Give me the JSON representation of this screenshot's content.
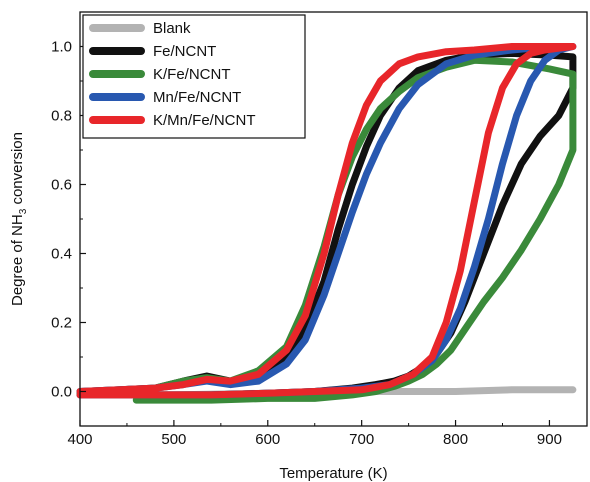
{
  "chart_data": {
    "type": "line",
    "xlabel": "Temperature (K)",
    "ylabel": {
      "prefix": "Degree of NH",
      "subscript": "3",
      "suffix": " conversion"
    },
    "xlim": [
      400,
      940
    ],
    "ylim": [
      -0.1,
      1.1
    ],
    "xticks": [
      400,
      500,
      600,
      700,
      800,
      900
    ],
    "yticks": [
      0.0,
      0.2,
      0.4,
      0.6,
      0.8,
      1.0
    ],
    "ytick_labels": [
      "0.0",
      "0.2",
      "0.4",
      "0.6",
      "0.8",
      "1.0"
    ],
    "legend": "top-left",
    "grid": false,
    "series": [
      {
        "name": "Blank",
        "color": "#b3b3b3",
        "x": [
          400,
          500,
          600,
          700,
          800,
          860,
          925
        ],
        "y": [
          -0.01,
          -0.01,
          -0.005,
          0.0,
          0.0,
          0.005,
          0.005
        ]
      },
      {
        "name": "Fe/NCNT",
        "color": "#111111",
        "x": [
          400,
          480,
          510,
          535,
          560,
          590,
          620,
          640,
          660,
          675,
          690,
          705,
          720,
          740,
          760,
          790,
          820,
          860,
          900,
          925,
          925,
          910,
          890,
          870,
          850,
          830,
          810,
          795,
          780,
          765,
          750,
          735,
          715,
          690,
          650,
          600,
          540,
          480,
          420,
          400
        ],
        "y": [
          0.0,
          0.01,
          0.03,
          0.045,
          0.03,
          0.05,
          0.1,
          0.18,
          0.32,
          0.47,
          0.6,
          0.71,
          0.8,
          0.88,
          0.93,
          0.96,
          0.975,
          0.98,
          0.975,
          0.97,
          0.88,
          0.8,
          0.74,
          0.66,
          0.54,
          0.4,
          0.26,
          0.17,
          0.11,
          0.07,
          0.045,
          0.03,
          0.02,
          0.01,
          0.0,
          -0.005,
          -0.01,
          -0.01,
          -0.01,
          -0.01
        ]
      },
      {
        "name": "K/Fe/NCNT",
        "color": "#3a8a3a",
        "x": [
          400,
          480,
          510,
          535,
          560,
          590,
          620,
          640,
          660,
          675,
          690,
          705,
          720,
          740,
          760,
          790,
          820,
          860,
          900,
          925,
          925,
          910,
          890,
          870,
          850,
          830,
          810,
          795,
          780,
          765,
          750,
          735,
          715,
          690,
          650,
          600,
          540,
          480,
          460
        ],
        "y": [
          -0.005,
          0.01,
          0.03,
          0.04,
          0.03,
          0.06,
          0.13,
          0.25,
          0.42,
          0.57,
          0.68,
          0.76,
          0.82,
          0.87,
          0.91,
          0.94,
          0.96,
          0.955,
          0.935,
          0.92,
          0.7,
          0.6,
          0.5,
          0.41,
          0.33,
          0.26,
          0.18,
          0.12,
          0.08,
          0.05,
          0.03,
          0.015,
          0.0,
          -0.01,
          -0.02,
          -0.02,
          -0.025,
          -0.025,
          -0.025
        ]
      },
      {
        "name": "Mn/Fe/NCNT",
        "color": "#2858b0",
        "x": [
          400,
          480,
          510,
          535,
          560,
          590,
          620,
          640,
          660,
          675,
          690,
          705,
          720,
          740,
          760,
          790,
          820,
          860,
          900,
          925,
          925,
          910,
          895,
          880,
          865,
          850,
          835,
          820,
          805,
          790,
          775,
          755,
          730,
          700,
          650,
          600,
          540,
          480,
          420,
          400
        ],
        "y": [
          0.0,
          0.01,
          0.02,
          0.03,
          0.02,
          0.03,
          0.08,
          0.15,
          0.28,
          0.4,
          0.52,
          0.63,
          0.72,
          0.82,
          0.89,
          0.95,
          0.975,
          0.99,
          1.0,
          1.0,
          1.0,
          0.99,
          0.96,
          0.9,
          0.8,
          0.66,
          0.5,
          0.36,
          0.24,
          0.15,
          0.09,
          0.05,
          0.02,
          0.01,
          0.0,
          -0.005,
          -0.01,
          -0.01,
          -0.01,
          -0.01
        ]
      },
      {
        "name": "K/Mn/Fe/NCNT",
        "color": "#e8262a",
        "x": [
          400,
          480,
          510,
          535,
          560,
          590,
          620,
          640,
          660,
          675,
          690,
          705,
          720,
          740,
          760,
          790,
          820,
          860,
          900,
          925,
          925,
          910,
          895,
          880,
          865,
          850,
          835,
          820,
          805,
          790,
          775,
          755,
          730,
          700,
          650,
          600,
          540,
          480,
          420,
          400
        ],
        "y": [
          0.0,
          0.01,
          0.02,
          0.035,
          0.03,
          0.05,
          0.12,
          0.22,
          0.4,
          0.57,
          0.72,
          0.83,
          0.9,
          0.95,
          0.97,
          0.985,
          0.99,
          1.0,
          1.0,
          1.0,
          1.0,
          0.995,
          0.99,
          0.98,
          0.95,
          0.88,
          0.75,
          0.55,
          0.35,
          0.2,
          0.1,
          0.05,
          0.02,
          0.005,
          0.0,
          -0.005,
          -0.01,
          -0.01,
          -0.01,
          -0.01
        ]
      }
    ]
  }
}
